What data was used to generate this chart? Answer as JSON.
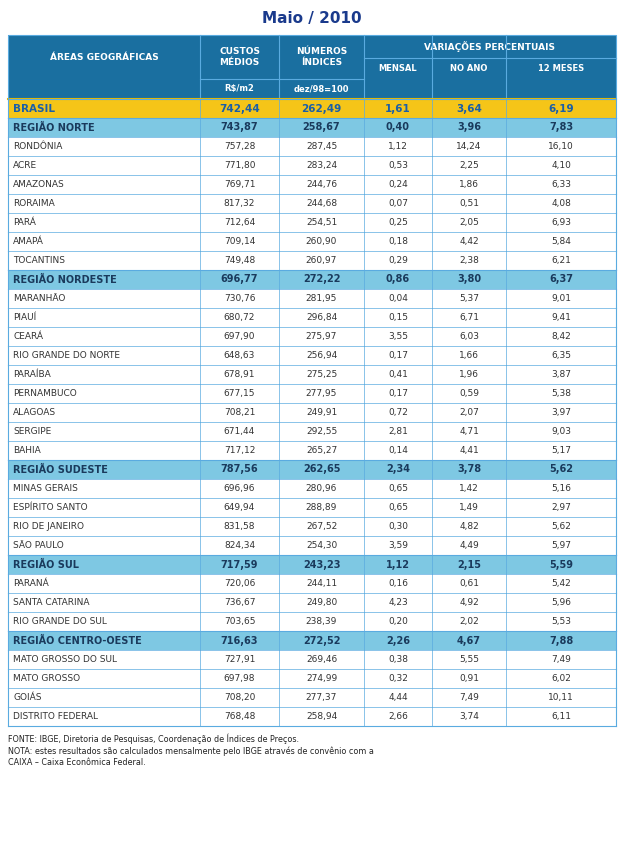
{
  "title": "Maio / 2010",
  "rows": [
    {
      "name": "BRASIL",
      "custos": "742,44",
      "indices": "262,49",
      "mensal": "1,61",
      "no_ano": "3,64",
      "doze": "6,19",
      "type": "brasil"
    },
    {
      "name": "REGIÃO NORTE",
      "custos": "743,87",
      "indices": "258,67",
      "mensal": "0,40",
      "no_ano": "3,96",
      "doze": "7,83",
      "type": "region"
    },
    {
      "name": "RONDÔNIA",
      "custos": "757,28",
      "indices": "287,45",
      "mensal": "1,12",
      "no_ano": "14,24",
      "doze": "16,10",
      "type": "state"
    },
    {
      "name": "ACRE",
      "custos": "771,80",
      "indices": "283,24",
      "mensal": "0,53",
      "no_ano": "2,25",
      "doze": "4,10",
      "type": "state"
    },
    {
      "name": "AMAZONAS",
      "custos": "769,71",
      "indices": "244,76",
      "mensal": "0,24",
      "no_ano": "1,86",
      "doze": "6,33",
      "type": "state"
    },
    {
      "name": "RORAIMA",
      "custos": "817,32",
      "indices": "244,68",
      "mensal": "0,07",
      "no_ano": "0,51",
      "doze": "4,08",
      "type": "state"
    },
    {
      "name": "PARÁ",
      "custos": "712,64",
      "indices": "254,51",
      "mensal": "0,25",
      "no_ano": "2,05",
      "doze": "6,93",
      "type": "state"
    },
    {
      "name": "AMAPÁ",
      "custos": "709,14",
      "indices": "260,90",
      "mensal": "0,18",
      "no_ano": "4,42",
      "doze": "5,84",
      "type": "state"
    },
    {
      "name": "TOCANTINS",
      "custos": "749,48",
      "indices": "260,97",
      "mensal": "0,29",
      "no_ano": "2,38",
      "doze": "6,21",
      "type": "state"
    },
    {
      "name": "REGIÃO NORDESTE",
      "custos": "696,77",
      "indices": "272,22",
      "mensal": "0,86",
      "no_ano": "3,80",
      "doze": "6,37",
      "type": "region"
    },
    {
      "name": "MARANHÃO",
      "custos": "730,76",
      "indices": "281,95",
      "mensal": "0,04",
      "no_ano": "5,37",
      "doze": "9,01",
      "type": "state"
    },
    {
      "name": "PIAUÍ",
      "custos": "680,72",
      "indices": "296,84",
      "mensal": "0,15",
      "no_ano": "6,71",
      "doze": "9,41",
      "type": "state"
    },
    {
      "name": "CEARÁ",
      "custos": "697,90",
      "indices": "275,97",
      "mensal": "3,55",
      "no_ano": "6,03",
      "doze": "8,42",
      "type": "state"
    },
    {
      "name": "RIO GRANDE DO NORTE",
      "custos": "648,63",
      "indices": "256,94",
      "mensal": "0,17",
      "no_ano": "1,66",
      "doze": "6,35",
      "type": "state"
    },
    {
      "name": "PARAÍBA",
      "custos": "678,91",
      "indices": "275,25",
      "mensal": "0,41",
      "no_ano": "1,96",
      "doze": "3,87",
      "type": "state"
    },
    {
      "name": "PERNAMBUCO",
      "custos": "677,15",
      "indices": "277,95",
      "mensal": "0,17",
      "no_ano": "0,59",
      "doze": "5,38",
      "type": "state"
    },
    {
      "name": "ALAGOAS",
      "custos": "708,21",
      "indices": "249,91",
      "mensal": "0,72",
      "no_ano": "2,07",
      "doze": "3,97",
      "type": "state"
    },
    {
      "name": "SERGIPE",
      "custos": "671,44",
      "indices": "292,55",
      "mensal": "2,81",
      "no_ano": "4,71",
      "doze": "9,03",
      "type": "state"
    },
    {
      "name": "BAHIA",
      "custos": "717,12",
      "indices": "265,27",
      "mensal": "0,14",
      "no_ano": "4,41",
      "doze": "5,17",
      "type": "state"
    },
    {
      "name": "REGIÃO SUDESTE",
      "custos": "787,56",
      "indices": "262,65",
      "mensal": "2,34",
      "no_ano": "3,78",
      "doze": "5,62",
      "type": "region"
    },
    {
      "name": "MINAS GERAIS",
      "custos": "696,96",
      "indices": "280,96",
      "mensal": "0,65",
      "no_ano": "1,42",
      "doze": "5,16",
      "type": "state"
    },
    {
      "name": "ESPÍRITO SANTO",
      "custos": "649,94",
      "indices": "288,89",
      "mensal": "0,65",
      "no_ano": "1,49",
      "doze": "2,97",
      "type": "state"
    },
    {
      "name": "RIO DE JANEIRO",
      "custos": "831,58",
      "indices": "267,52",
      "mensal": "0,30",
      "no_ano": "4,82",
      "doze": "5,62",
      "type": "state"
    },
    {
      "name": "SÃO PAULO",
      "custos": "824,34",
      "indices": "254,30",
      "mensal": "3,59",
      "no_ano": "4,49",
      "doze": "5,97",
      "type": "state"
    },
    {
      "name": "REGIÃO SUL",
      "custos": "717,59",
      "indices": "243,23",
      "mensal": "1,12",
      "no_ano": "2,15",
      "doze": "5,59",
      "type": "region"
    },
    {
      "name": "PARANÁ",
      "custos": "720,06",
      "indices": "244,11",
      "mensal": "0,16",
      "no_ano": "0,61",
      "doze": "5,42",
      "type": "state"
    },
    {
      "name": "SANTA CATARINA",
      "custos": "736,67",
      "indices": "249,80",
      "mensal": "4,23",
      "no_ano": "4,92",
      "doze": "5,96",
      "type": "state"
    },
    {
      "name": "RIO GRANDE DO SUL",
      "custos": "703,65",
      "indices": "238,39",
      "mensal": "0,20",
      "no_ano": "2,02",
      "doze": "5,53",
      "type": "state"
    },
    {
      "name": "REGIÃO CENTRO-OESTE",
      "custos": "716,63",
      "indices": "272,52",
      "mensal": "2,26",
      "no_ano": "4,67",
      "doze": "7,88",
      "type": "region"
    },
    {
      "name": "MATO GROSSO DO SUL",
      "custos": "727,91",
      "indices": "269,46",
      "mensal": "0,38",
      "no_ano": "5,55",
      "doze": "7,49",
      "type": "state"
    },
    {
      "name": "MATO GROSSO",
      "custos": "697,98",
      "indices": "274,99",
      "mensal": "0,32",
      "no_ano": "0,91",
      "doze": "6,02",
      "type": "state"
    },
    {
      "name": "GOIÁS",
      "custos": "708,20",
      "indices": "277,37",
      "mensal": "4,44",
      "no_ano": "7,49",
      "doze": "10,11",
      "type": "state"
    },
    {
      "name": "DISTRITO FEDERAL",
      "custos": "768,48",
      "indices": "258,94",
      "mensal": "2,66",
      "no_ano": "3,74",
      "doze": "6,11",
      "type": "state"
    }
  ],
  "footer_lines": [
    "FONTE: IBGE, Diretoria de Pesquisas, Coordenação de Índices de Preços.",
    "NOTA: estes resultados são calculados mensalmente pelo IBGE através de convênio com a",
    "CAIXA – Caixa Econômica Federal."
  ],
  "colors": {
    "header_bg": "#1a6fa0",
    "header_text": "#ffffff",
    "brasil_bg": "#f5c518",
    "brasil_border": "#e8a800",
    "brasil_text": "#1a5fa8",
    "region_bg": "#7ec8e3",
    "region_text": "#1a3a5c",
    "state_bg": "#ffffff",
    "state_text": "#333333",
    "grid_line": "#4a90c4",
    "title_color": "#1a3a8c",
    "footer_text": "#222222"
  }
}
